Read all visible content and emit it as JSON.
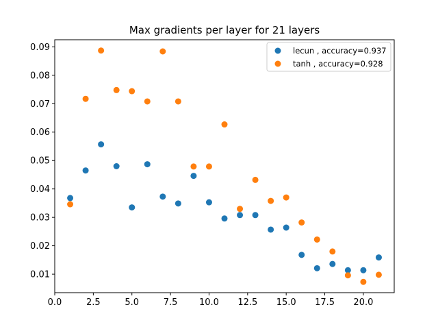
{
  "chart_data": {
    "type": "scatter",
    "title": "Max gradients per layer for 21 layers",
    "xlabel": "",
    "ylabel": "",
    "xlim": [
      0,
      22
    ],
    "ylim": [
      0.0035,
      0.0925
    ],
    "xticks": [
      0.0,
      2.5,
      5.0,
      7.5,
      10.0,
      12.5,
      15.0,
      17.5,
      20.0
    ],
    "xtick_labels": [
      "0.0",
      "2.5",
      "5.0",
      "7.5",
      "10.0",
      "12.5",
      "15.0",
      "17.5",
      "20.0"
    ],
    "yticks": [
      0.01,
      0.02,
      0.03,
      0.04,
      0.05,
      0.06,
      0.07,
      0.08,
      0.09
    ],
    "ytick_labels": [
      "0.01",
      "0.02",
      "0.03",
      "0.04",
      "0.05",
      "0.06",
      "0.07",
      "0.08",
      "0.09"
    ],
    "grid": false,
    "legend_position": "top-right",
    "series": [
      {
        "name": "lecun , accuracy=0.937",
        "color": "#1f77b4",
        "x": [
          1,
          2,
          3,
          4,
          5,
          6,
          7,
          8,
          9,
          10,
          11,
          12,
          13,
          14,
          15,
          16,
          17,
          18,
          19,
          20,
          21
        ],
        "y": [
          0.0368,
          0.0465,
          0.0557,
          0.048,
          0.0335,
          0.0487,
          0.0373,
          0.0349,
          0.0446,
          0.0353,
          0.0296,
          0.0308,
          0.0308,
          0.0257,
          0.0264,
          0.0168,
          0.0121,
          0.0136,
          0.0114,
          0.0114,
          0.0159
        ]
      },
      {
        "name": "tanh , accuracy=0.928",
        "color": "#ff7f0e",
        "x": [
          1,
          2,
          3,
          4,
          5,
          6,
          7,
          8,
          9,
          10,
          11,
          12,
          13,
          14,
          15,
          16,
          17,
          18,
          19,
          20,
          21
        ],
        "y": [
          0.0346,
          0.0717,
          0.0887,
          0.0748,
          0.0744,
          0.0708,
          0.0884,
          0.0708,
          0.0479,
          0.0479,
          0.0627,
          0.033,
          0.0432,
          0.0358,
          0.037,
          0.0282,
          0.0222,
          0.018,
          0.0096,
          0.0073,
          0.0098
        ]
      }
    ]
  }
}
